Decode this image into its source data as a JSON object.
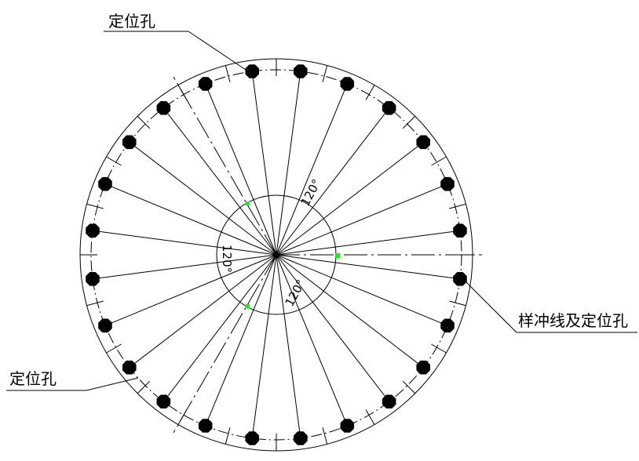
{
  "labels": {
    "top_left": "定位孔",
    "bottom_left": "定位孔",
    "right": "样冲线及定位孔"
  },
  "dimensions": {
    "angle_1": "120°",
    "angle_2": "120°",
    "angle_3": "120°"
  },
  "hole_count": 24,
  "colors": {
    "line": "#000000",
    "marker": "#00ff00",
    "hole": "#000000",
    "background": "#ffffff"
  }
}
